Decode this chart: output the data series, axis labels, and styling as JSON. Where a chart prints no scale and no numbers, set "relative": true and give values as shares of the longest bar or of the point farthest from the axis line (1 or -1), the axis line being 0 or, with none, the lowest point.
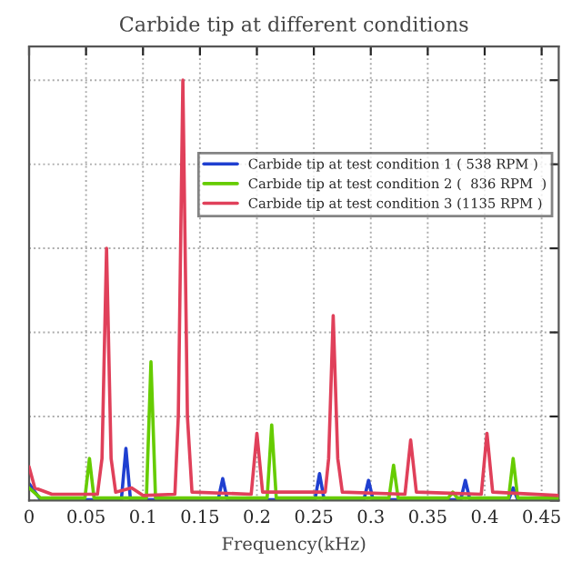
{
  "chart_data": {
    "type": "line",
    "title": "Carbide tip at different conditions",
    "xlabel": "Frequency(kHz)",
    "relative": true,
    "xlim": [
      0,
      0.465
    ],
    "xticks": [
      0,
      0.05,
      0.1,
      0.15,
      0.2,
      0.25,
      0.3,
      0.35,
      0.4,
      0.45
    ],
    "grid": true,
    "legend": "top right",
    "tick_labels": "x",
    "line_style": "solid",
    "series": [
      {
        "name": "Carbide tip at test condition 1 ( 538 RPM )",
        "color": "#1f3fd0",
        "x": [
          0,
          0.01,
          0.081,
          0.085,
          0.089,
          0.166,
          0.17,
          0.174,
          0.251,
          0.255,
          0.259,
          0.294,
          0.298,
          0.302,
          0.379,
          0.383,
          0.387,
          0.421,
          0.425,
          0.429,
          0.465
        ],
        "values": [
          0.04,
          0.002,
          0.002,
          0.124,
          0.002,
          0.002,
          0.052,
          0.002,
          0.002,
          0.064,
          0.002,
          0.002,
          0.048,
          0.002,
          0.002,
          0.048,
          0.002,
          0.002,
          0.03,
          0.002,
          0.002
        ]
      },
      {
        "name": "Carbide tip at test condition 2 (  836 RPM  )",
        "color": "#66cc00",
        "x": [
          0,
          0.01,
          0.049,
          0.053,
          0.057,
          0.103,
          0.107,
          0.111,
          0.209,
          0.213,
          0.217,
          0.316,
          0.32,
          0.324,
          0.368,
          0.372,
          0.376,
          0.421,
          0.425,
          0.429,
          0.465
        ],
        "values": [
          0.03,
          0.006,
          0.006,
          0.1,
          0.006,
          0.006,
          0.33,
          0.006,
          0.006,
          0.18,
          0.006,
          0.006,
          0.084,
          0.006,
          0.006,
          0.02,
          0.006,
          0.006,
          0.1,
          0.006,
          0.006
        ]
      },
      {
        "name": "Carbide tip at test condition 3 (1135 RPM )",
        "color": "#e0405a",
        "x": [
          0,
          0.005,
          0.02,
          0.06,
          0.064,
          0.068,
          0.072,
          0.076,
          0.09,
          0.1,
          0.128,
          0.131,
          0.135,
          0.139,
          0.143,
          0.195,
          0.2,
          0.205,
          0.26,
          0.263,
          0.267,
          0.271,
          0.275,
          0.33,
          0.335,
          0.34,
          0.397,
          0.402,
          0.407,
          0.465
        ],
        "values": [
          0.08,
          0.03,
          0.015,
          0.015,
          0.1,
          0.6,
          0.1,
          0.02,
          0.03,
          0.012,
          0.015,
          0.2,
          1.0,
          0.2,
          0.02,
          0.015,
          0.16,
          0.02,
          0.02,
          0.1,
          0.44,
          0.1,
          0.02,
          0.015,
          0.144,
          0.02,
          0.015,
          0.16,
          0.02,
          0.012
        ]
      }
    ]
  }
}
